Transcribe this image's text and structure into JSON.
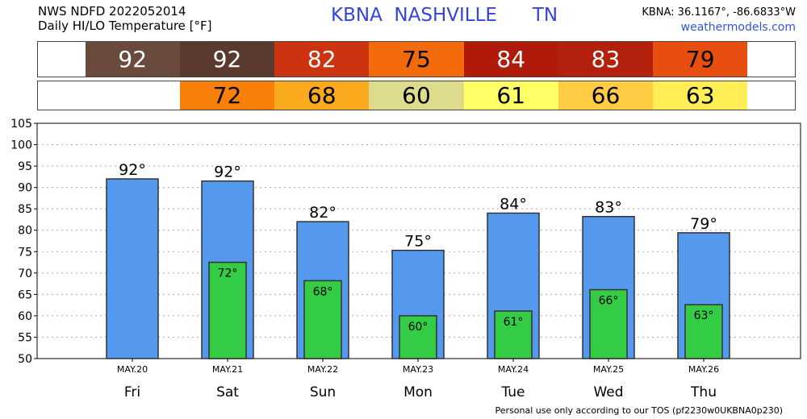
{
  "header": {
    "line1": "NWS NDFD 2022052014",
    "line2": "Daily HI/LO Temperature [°F]",
    "station": "KBNA  NASHVILLE      TN",
    "coords": "KBNA: 36.1167°, -86.6833°W",
    "site": "weathermodels.com"
  },
  "hi_strip": [
    {
      "value": "92",
      "color": "#6b4a3e",
      "text_color": "#ffffff"
    },
    {
      "value": "92",
      "color": "#5a3a2f",
      "text_color": "#ffffff"
    },
    {
      "value": "82",
      "color": "#cc3311",
      "text_color": "#ffffff"
    },
    {
      "value": "75",
      "color": "#f26a0a",
      "text_color": "#000000"
    },
    {
      "value": "84",
      "color": "#b01a0a",
      "text_color": "#ffffff"
    },
    {
      "value": "83",
      "color": "#b3200c",
      "text_color": "#ffffff"
    },
    {
      "value": "79",
      "color": "#e84e0f",
      "text_color": "#000000"
    }
  ],
  "lo_strip": [
    {
      "value": "",
      "color": "#ffffff",
      "text_color": "#000000"
    },
    {
      "value": "72",
      "color": "#f77f0a",
      "text_color": "#000000"
    },
    {
      "value": "68",
      "color": "#fbaa1e",
      "text_color": "#000000"
    },
    {
      "value": "60",
      "color": "#dcdc8c",
      "text_color": "#000000"
    },
    {
      "value": "61",
      "color": "#ffff66",
      "text_color": "#000000"
    },
    {
      "value": "66",
      "color": "#ffcc44",
      "text_color": "#000000"
    },
    {
      "value": "63",
      "color": "#ffee55",
      "text_color": "#000000"
    }
  ],
  "chart_data": {
    "type": "bar",
    "categories": [
      "Fri",
      "Sat",
      "Sun",
      "Mon",
      "Tue",
      "Wed",
      "Thu"
    ],
    "dates": [
      "MAY.20",
      "MAY.21",
      "MAY.22",
      "MAY.23",
      "MAY.24",
      "MAY.25",
      "MAY.26"
    ],
    "series": [
      {
        "values": [
          92,
          91.5,
          82,
          75.3,
          84,
          83.2,
          79.4
        ],
        "labels": [
          "92°",
          "92°",
          "82°",
          "75°",
          "84°",
          "83°",
          "79°"
        ],
        "color": "#5599ee"
      },
      {
        "values": [
          null,
          72.5,
          68.2,
          60,
          61.1,
          66.1,
          62.6
        ],
        "labels": [
          "",
          "72°",
          "68°",
          "60°",
          "61°",
          "66°",
          "63°"
        ],
        "color": "#33cc44"
      }
    ],
    "yticks": [
      50,
      55,
      60,
      65,
      70,
      75,
      80,
      85,
      90,
      95,
      100,
      105
    ],
    "ylim": [
      50,
      105
    ],
    "grid": true
  },
  "footer": "Personal use only according to our TOS (pf2230w0UKBNA0p230)"
}
